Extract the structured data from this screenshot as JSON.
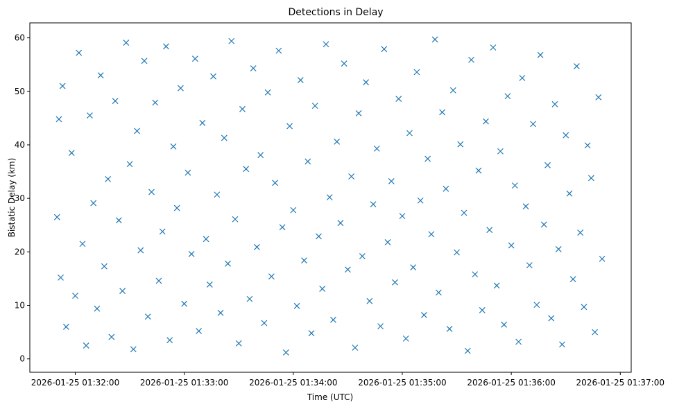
{
  "chart_data": {
    "type": "scatter",
    "title": "Detections in Delay",
    "xlabel": "Time (UTC)",
    "ylabel": "Bistatic Delay (km)",
    "xlim": [
      "2026-01-25 01:31:35",
      "2026-01-25 01:37:06"
    ],
    "ylim": [
      -2.5,
      62.8
    ],
    "x_ticks": [
      "2026-01-25 01:32:00",
      "2026-01-25 01:33:00",
      "2026-01-25 01:34:00",
      "2026-01-25 01:35:00",
      "2026-01-25 01:36:00",
      "2026-01-25 01:37:00"
    ],
    "y_ticks": [
      0,
      10,
      20,
      30,
      40,
      50,
      60
    ],
    "marker": "x",
    "color": "#1f77b4",
    "grid": false,
    "legend": "none",
    "series": [
      {
        "x": [
          "01:31:50",
          "01:31:51",
          "01:31:52",
          "01:31:53",
          "01:31:55",
          "01:31:58",
          "01:32:00",
          "01:32:02",
          "01:32:04",
          "01:32:06",
          "01:32:08",
          "01:32:10",
          "01:32:12",
          "01:32:14",
          "01:32:16",
          "01:32:18",
          "01:32:20",
          "01:32:22",
          "01:32:24",
          "01:32:26",
          "01:32:28",
          "01:32:30",
          "01:32:32",
          "01:32:34",
          "01:32:36",
          "01:32:38",
          "01:32:40",
          "01:32:42",
          "01:32:44",
          "01:32:46",
          "01:32:48",
          "01:32:50",
          "01:32:52",
          "01:32:54",
          "01:32:56",
          "01:32:58",
          "01:33:00",
          "01:33:02",
          "01:33:04",
          "01:33:06",
          "01:33:08",
          "01:33:10",
          "01:33:12",
          "01:33:14",
          "01:33:16",
          "01:33:18",
          "01:33:20",
          "01:33:22",
          "01:33:24",
          "01:33:26",
          "01:33:28",
          "01:33:30",
          "01:33:32",
          "01:33:34",
          "01:33:36",
          "01:33:38",
          "01:33:40",
          "01:33:42",
          "01:33:44",
          "01:33:46",
          "01:33:48",
          "01:33:50",
          "01:33:52",
          "01:33:54",
          "01:33:56",
          "01:33:58",
          "01:34:00",
          "01:34:02",
          "01:34:04",
          "01:34:06",
          "01:34:08",
          "01:34:10",
          "01:34:12",
          "01:34:14",
          "01:34:16",
          "01:34:18",
          "01:34:20",
          "01:34:22",
          "01:34:24",
          "01:34:26",
          "01:34:28",
          "01:34:30",
          "01:34:32",
          "01:34:34",
          "01:34:36",
          "01:34:38",
          "01:34:40",
          "01:34:42",
          "01:34:44",
          "01:34:46",
          "01:34:48",
          "01:34:50",
          "01:34:52",
          "01:34:54",
          "01:34:56",
          "01:34:58",
          "01:35:00",
          "01:35:02",
          "01:35:04",
          "01:35:06",
          "01:35:08",
          "01:35:10",
          "01:35:12",
          "01:35:14",
          "01:35:16",
          "01:35:18",
          "01:35:20",
          "01:35:22",
          "01:35:24",
          "01:35:26",
          "01:35:28",
          "01:35:30",
          "01:35:32",
          "01:35:34",
          "01:35:36",
          "01:35:38",
          "01:35:40",
          "01:35:42",
          "01:35:44",
          "01:35:46",
          "01:35:48",
          "01:35:50",
          "01:35:52",
          "01:35:54",
          "01:35:56",
          "01:35:58",
          "01:36:00",
          "01:36:02",
          "01:36:04",
          "01:36:06",
          "01:36:08",
          "01:36:10",
          "01:36:12",
          "01:36:14",
          "01:36:16",
          "01:36:18",
          "01:36:20",
          "01:36:22",
          "01:36:24",
          "01:36:26",
          "01:36:28",
          "01:36:30",
          "01:36:32",
          "01:36:34",
          "01:36:36",
          "01:36:38",
          "01:36:40",
          "01:36:42",
          "01:36:44",
          "01:36:46",
          "01:36:48",
          "01:36:50"
        ],
        "y": [
          26.5,
          44.8,
          15.2,
          51.0,
          6.0,
          38.5,
          11.8,
          57.2,
          21.5,
          2.5,
          45.5,
          29.1,
          9.4,
          53.0,
          17.3,
          33.6,
          4.1,
          48.2,
          25.9,
          12.7,
          59.1,
          36.4,
          1.8,
          42.6,
          20.3,
          55.7,
          7.9,
          31.2,
          47.9,
          14.6,
          23.8,
          58.4,
          3.5,
          39.7,
          28.2,
          50.6,
          10.3,
          34.8,
          19.6,
          56.1,
          5.2,
          44.1,
          22.4,
          13.9,
          52.8,
          30.7,
          8.6,
          41.3,
          17.8,
          59.4,
          26.1,
          2.9,
          46.7,
          35.5,
          11.2,
          54.3,
          20.9,
          38.1,
          6.7,
          49.8,
          15.4,
          32.9,
          57.6,
          24.6,
          1.2,
          43.5,
          27.8,
          9.9,
          52.1,
          18.4,
          36.9,
          4.8,
          47.3,
          22.9,
          13.1,
          58.8,
          30.2,
          7.3,
          40.6,
          25.4,
          55.2,
          16.7,
          34.1,
          2.1,
          45.9,
          19.2,
          51.7,
          10.8,
          28.9,
          39.3,
          6.1,
          57.9,
          21.8,
          33.2,
          14.3,
          48.6,
          26.7,
          3.8,
          42.2,
          17.1,
          53.6,
          29.6,
          8.2,
          37.4,
          23.3,
          59.7,
          12.4,
          46.1,
          31.8,
          5.6,
          50.2,
          19.9,
          40.1,
          27.3,
          1.5,
          55.9,
          15.8,
          35.2,
          9.1,
          44.4,
          24.1,
          58.2,
          13.7,
          38.8,
          6.4,
          49.1,
          21.2,
          32.4,
          3.2,
          52.5,
          28.5,
          17.5,
          43.9,
          10.1,
          56.8,
          25.1,
          36.2,
          7.6,
          47.6,
          20.5,
          2.7,
          41.8,
          30.9,
          14.9,
          54.7,
          23.6,
          9.7,
          39.9,
          33.8,
          5.0,
          48.9,
          18.7
        ]
      }
    ]
  }
}
